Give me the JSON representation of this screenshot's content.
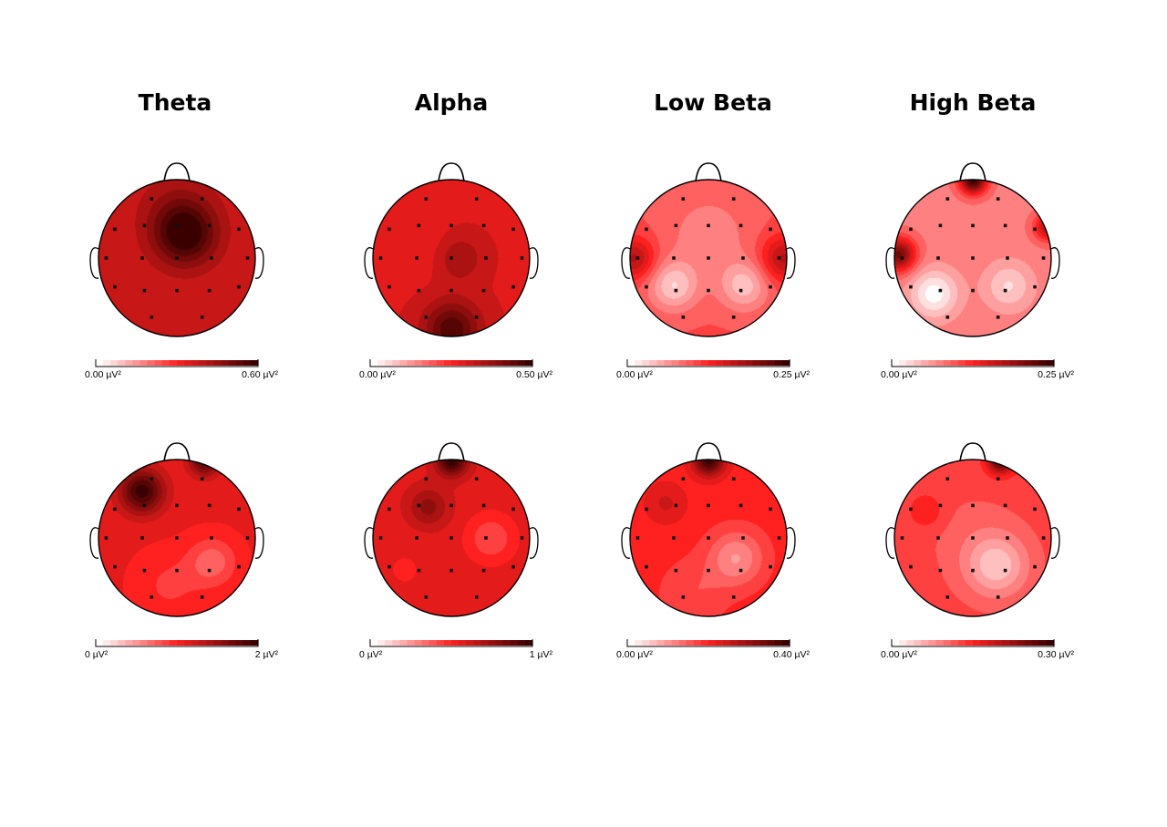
{
  "bands": [
    {
      "title": "Theta"
    },
    {
      "title": "Alpha"
    },
    {
      "title": "Low Beta"
    },
    {
      "title": "High Beta"
    }
  ],
  "colors": {
    "low": "#ffffff",
    "mid": "#ff2020",
    "high": "#3a0000",
    "outline": "#000000"
  },
  "maps": [
    {
      "band": "Theta",
      "row": 1,
      "scale_min": "0.00 µV²",
      "scale_max": "0.60 µV²",
      "base_level": 0.62,
      "blobs": [
        {
          "u": 0.1,
          "v": -0.3,
          "amp": 0.38,
          "s": 0.28
        },
        {
          "u": 0.0,
          "v": -0.6,
          "amp": 0.12,
          "s": 0.35
        }
      ]
    },
    {
      "band": "Alpha",
      "row": 1,
      "scale_min": "0.00 µV²",
      "scale_max": "0.50 µV²",
      "base_level": 0.6,
      "blobs": [
        {
          "u": 0.0,
          "v": 0.9,
          "amp": 0.35,
          "s": 0.25
        },
        {
          "u": 0.1,
          "v": 0.0,
          "amp": 0.15,
          "s": 0.2
        },
        {
          "u": -0.5,
          "v": -0.2,
          "amp": -0.06,
          "s": 0.3
        }
      ]
    },
    {
      "band": "Low Beta",
      "row": 1,
      "scale_min": "0.00 µV²",
      "scale_max": "0.25 µV²",
      "base_level": 0.4,
      "blobs": [
        {
          "u": -0.45,
          "v": 0.35,
          "amp": -0.28,
          "s": 0.22
        },
        {
          "u": 0.45,
          "v": 0.35,
          "amp": -0.25,
          "s": 0.22
        },
        {
          "u": 0.0,
          "v": -0.3,
          "amp": -0.12,
          "s": 0.4
        },
        {
          "u": 0.95,
          "v": 0.0,
          "amp": 0.3,
          "s": 0.2
        },
        {
          "u": -0.95,
          "v": 0.0,
          "amp": 0.3,
          "s": 0.18
        }
      ]
    },
    {
      "band": "High Beta",
      "row": 1,
      "scale_min": "0.00 µV²",
      "scale_max": "0.25 µV²",
      "base_level": 0.3,
      "blobs": [
        {
          "u": -0.5,
          "v": 0.45,
          "amp": -0.3,
          "s": 0.22
        },
        {
          "u": 0.45,
          "v": 0.35,
          "amp": -0.2,
          "s": 0.22
        },
        {
          "u": -0.95,
          "v": -0.05,
          "amp": 0.55,
          "s": 0.15
        },
        {
          "u": 0.0,
          "v": -1.0,
          "amp": 0.7,
          "s": 0.12
        },
        {
          "u": 0.95,
          "v": -0.4,
          "amp": 0.4,
          "s": 0.12
        }
      ]
    },
    {
      "band": "Theta",
      "row": 2,
      "scale_min": "0 µV²",
      "scale_max": "2 µV²",
      "base_level": 0.55,
      "blobs": [
        {
          "u": -0.45,
          "v": -0.6,
          "amp": 0.45,
          "s": 0.2
        },
        {
          "u": 0.35,
          "v": -1.0,
          "amp": 0.4,
          "s": 0.14
        },
        {
          "u": 0.45,
          "v": 0.3,
          "amp": -0.2,
          "s": 0.22
        },
        {
          "u": -0.1,
          "v": 0.6,
          "amp": -0.1,
          "s": 0.3
        }
      ]
    },
    {
      "band": "Alpha",
      "row": 2,
      "scale_min": "0 µV²",
      "scale_max": "1 µV²",
      "base_level": 0.58,
      "blobs": [
        {
          "u": -0.3,
          "v": -0.4,
          "amp": 0.2,
          "s": 0.18
        },
        {
          "u": 0.0,
          "v": -1.0,
          "amp": 0.45,
          "s": 0.14
        },
        {
          "u": 0.5,
          "v": 0.0,
          "amp": -0.18,
          "s": 0.22
        },
        {
          "u": -0.6,
          "v": 0.4,
          "amp": -0.05,
          "s": 0.3
        }
      ]
    },
    {
      "band": "Low Beta",
      "row": 2,
      "scale_min": "0.00 µV²",
      "scale_max": "0.40 µV²",
      "base_level": 0.5,
      "blobs": [
        {
          "u": 0.35,
          "v": 0.25,
          "amp": -0.25,
          "s": 0.25
        },
        {
          "u": 0.0,
          "v": -1.0,
          "amp": 0.5,
          "s": 0.14
        },
        {
          "u": -0.55,
          "v": -0.45,
          "amp": 0.12,
          "s": 0.18
        },
        {
          "u": -0.2,
          "v": 0.7,
          "amp": -0.1,
          "s": 0.3
        }
      ]
    },
    {
      "band": "High Beta",
      "row": 2,
      "scale_min": "0.00 µV²",
      "scale_max": "0.30 µV²",
      "base_level": 0.42,
      "blobs": [
        {
          "u": 0.3,
          "v": 0.35,
          "amp": -0.28,
          "s": 0.28
        },
        {
          "u": 0.35,
          "v": -1.0,
          "amp": 0.55,
          "s": 0.12
        },
        {
          "u": -0.6,
          "v": -0.35,
          "amp": 0.12,
          "s": 0.15
        },
        {
          "u": 0.0,
          "v": 0.0,
          "amp": -0.05,
          "s": 0.4
        }
      ]
    }
  ]
}
